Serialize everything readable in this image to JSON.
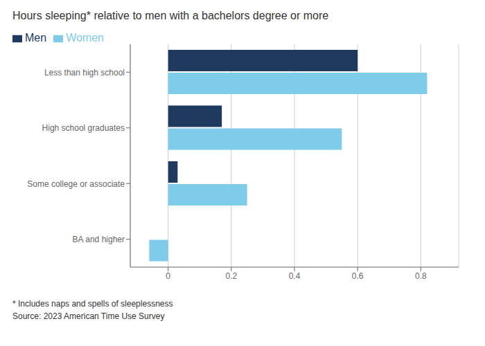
{
  "chart_data": {
    "type": "bar",
    "orientation": "horizontal",
    "title": "Hours sleeping* relative to men with a bachelors degree or more",
    "categories": [
      "Less than high school",
      "High school graduates",
      "Some college or associate",
      "BA and higher"
    ],
    "series": [
      {
        "name": "Men",
        "color": "#1e3a5f",
        "values": [
          0.6,
          0.17,
          0.03,
          0.0
        ]
      },
      {
        "name": "Women",
        "color": "#7eccea",
        "values": [
          0.82,
          0.55,
          0.25,
          -0.06
        ]
      }
    ],
    "xlim": [
      -0.12,
      0.92
    ],
    "xticks": [
      0,
      0.2,
      0.4,
      0.6,
      0.8
    ],
    "grid": true,
    "legend": "top-left",
    "annotations": [
      "* Includes naps and spells of sleeplessness",
      "Source: 2023 American Time Use Survey"
    ]
  }
}
